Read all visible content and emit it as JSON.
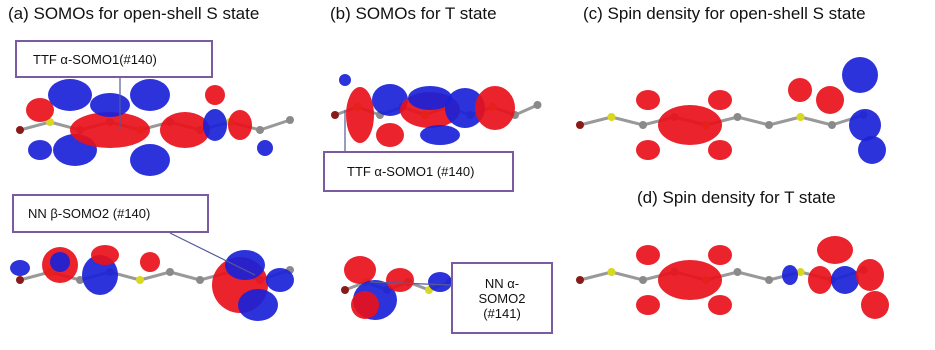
{
  "panels": [
    {
      "label": "(a) SOMOs for open-shell S state",
      "callouts": [
        "TTF α-SOMO1(#140)",
        "NN β-SOMO2 (#140)"
      ]
    },
    {
      "label": "(b) SOMOs for T state",
      "callouts": [
        "TTF α-SOMO1 (#140)",
        "NN α-SOMO2 (#141)"
      ]
    },
    {
      "label": "(c) Spin density for open-shell S state"
    },
    {
      "label": "(d) Spin density for T state"
    }
  ]
}
